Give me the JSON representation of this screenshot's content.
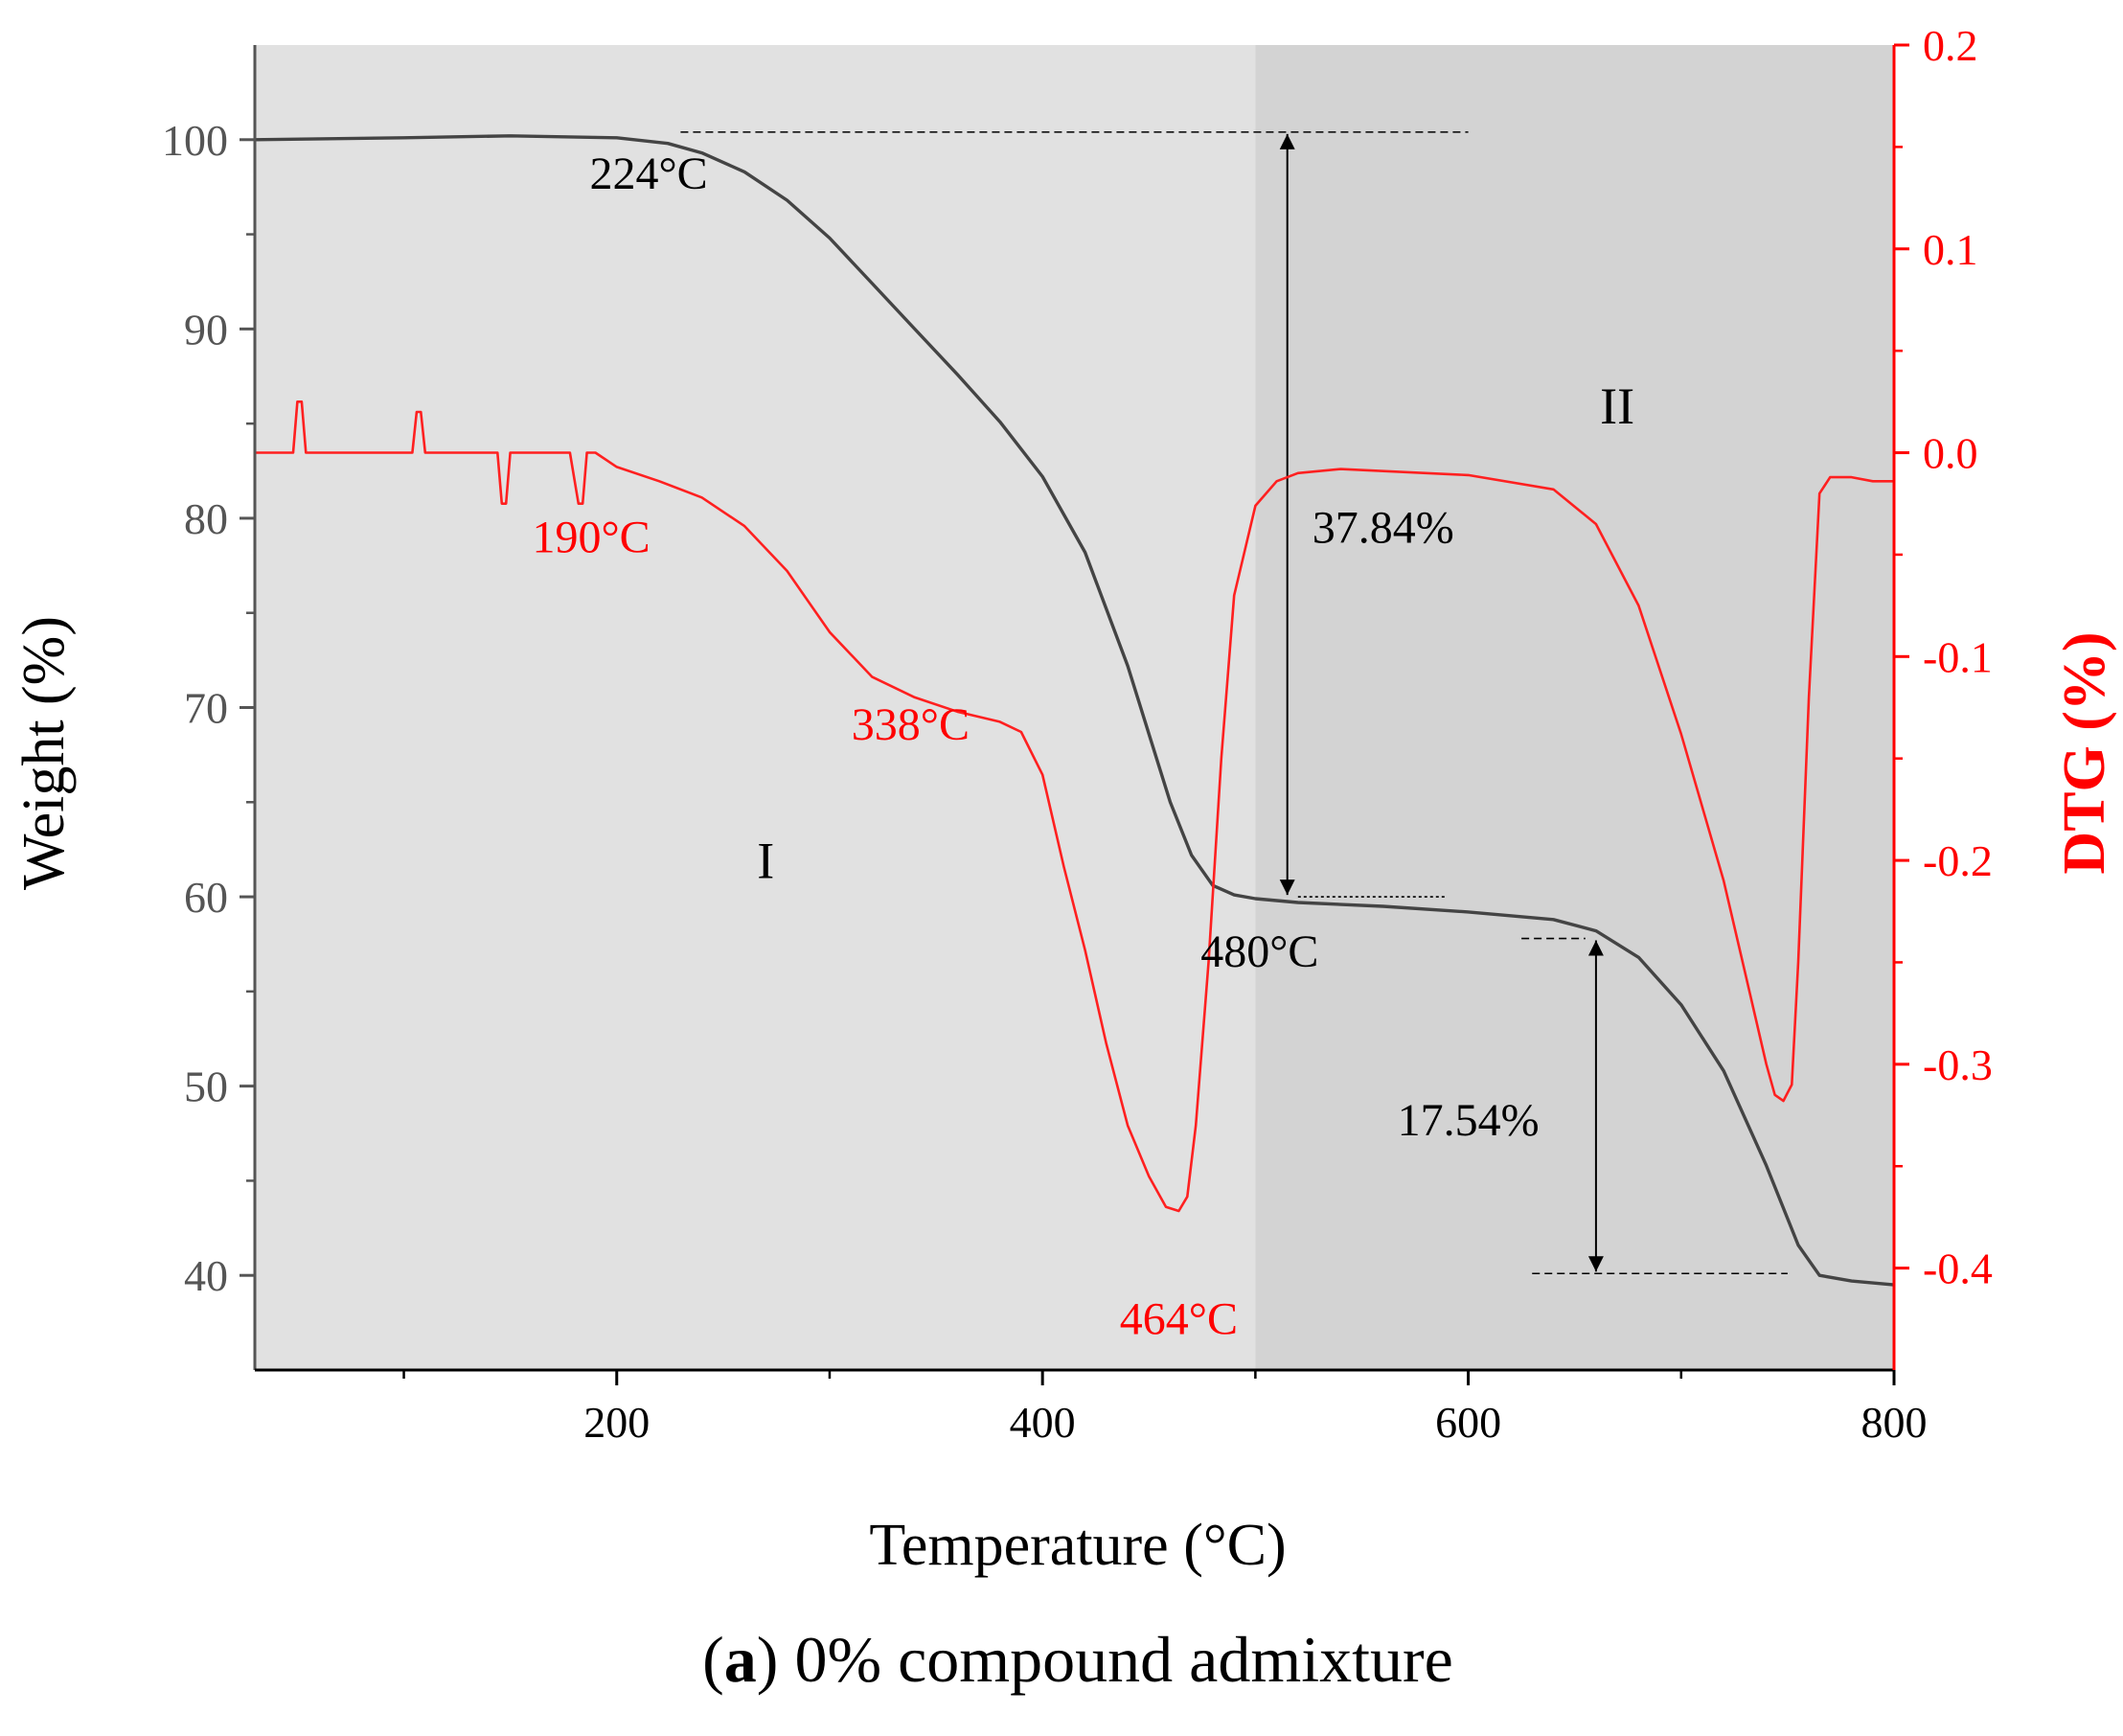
{
  "chart_data": {
    "type": "line",
    "xlabel": "Temperature (°C)",
    "ylabel_left": "Weight (%)",
    "ylabel_right": "DTG (%)",
    "caption_bold": "a",
    "caption_rest": ") 0% compound admixture",
    "caption_open": "(",
    "xlim": [
      30,
      800
    ],
    "ylim_left": [
      35,
      105
    ],
    "ylim_right": [
      -0.45,
      0.2
    ],
    "xticks": [
      200,
      400,
      600,
      800
    ],
    "xticks_minor": [
      100,
      300,
      500,
      700
    ],
    "yticks_left": [
      40,
      50,
      60,
      70,
      80,
      90,
      100
    ],
    "yticks_right": [
      0.2,
      0.1,
      0.0,
      -0.1,
      -0.2,
      -0.3,
      -0.4
    ],
    "yticks_right_labels": [
      "0.2",
      "0.1",
      "0.0",
      "-0.1",
      "-0.2",
      "-0.3",
      "-0.4"
    ],
    "regions": [
      {
        "name": "I",
        "x_range": [
          30,
          500
        ],
        "color": "#e1e1e1"
      },
      {
        "name": "II",
        "x_range": [
          500,
          800
        ],
        "color": "#d3d3d3"
      }
    ],
    "region_labels": [
      {
        "text": "I",
        "x": 270,
        "y": 61
      },
      {
        "text": "II",
        "x": 670,
        "y": 85
      }
    ],
    "series": [
      {
        "name": "Weight (TG)",
        "axis": "left",
        "color": "#444444",
        "x": [
          30,
          100,
          150,
          200,
          224,
          240,
          260,
          280,
          300,
          320,
          340,
          360,
          380,
          400,
          420,
          440,
          450,
          460,
          470,
          480,
          490,
          500,
          520,
          560,
          600,
          640,
          660,
          680,
          700,
          720,
          740,
          755,
          765,
          780,
          800
        ],
        "y": [
          100,
          100.1,
          100.2,
          100.1,
          99.8,
          99.3,
          98.3,
          96.8,
          94.8,
          92.4,
          90.0,
          87.6,
          85.1,
          82.2,
          78.2,
          72.2,
          68.6,
          65.0,
          62.2,
          60.6,
          60.1,
          59.9,
          59.7,
          59.5,
          59.2,
          58.8,
          58.2,
          56.8,
          54.3,
          50.8,
          45.8,
          41.6,
          40.0,
          39.7,
          39.5
        ]
      },
      {
        "name": "DTG",
        "axis": "right",
        "color": "#ff2020",
        "x": [
          30,
          48,
          50,
          52,
          54,
          100,
          104,
          106,
          108,
          110,
          140,
          144,
          146,
          148,
          150,
          178,
          182,
          184,
          186,
          188,
          190,
          200,
          220,
          240,
          260,
          280,
          300,
          320,
          340,
          360,
          380,
          390,
          400,
          410,
          420,
          430,
          440,
          450,
          458,
          464,
          468,
          472,
          478,
          484,
          490,
          500,
          510,
          520,
          540,
          560,
          600,
          640,
          660,
          680,
          700,
          720,
          730,
          740,
          744,
          748,
          752,
          755,
          760,
          765,
          770,
          780,
          790,
          800
        ],
        "y": [
          0.0,
          0.0,
          0.025,
          0.025,
          0.0,
          0.0,
          0.0,
          0.02,
          0.02,
          0.0,
          0.0,
          0.0,
          -0.025,
          -0.025,
          0.0,
          0.0,
          -0.025,
          -0.025,
          0.0,
          0.0,
          0.0,
          -0.007,
          -0.014,
          -0.022,
          -0.036,
          -0.058,
          -0.088,
          -0.11,
          -0.12,
          -0.127,
          -0.132,
          -0.137,
          -0.158,
          -0.203,
          -0.244,
          -0.29,
          -0.33,
          -0.355,
          -0.37,
          -0.372,
          -0.365,
          -0.33,
          -0.25,
          -0.15,
          -0.07,
          -0.026,
          -0.014,
          -0.01,
          -0.008,
          -0.009,
          -0.011,
          -0.018,
          -0.035,
          -0.075,
          -0.138,
          -0.21,
          -0.255,
          -0.3,
          -0.315,
          -0.318,
          -0.31,
          -0.25,
          -0.12,
          -0.02,
          -0.012,
          -0.012,
          -0.014,
          -0.014
        ]
      }
    ],
    "annotations": [
      {
        "text": "224°C",
        "color": "black",
        "x": 215,
        "y": 97.4
      },
      {
        "text": "190°C",
        "color": "red",
        "x": 188,
        "y": 78.2
      },
      {
        "text": "338°C",
        "color": "red",
        "x": 338,
        "y": 68.3
      },
      {
        "text": "464°C",
        "color": "red",
        "x": 464,
        "y": 36.9
      },
      {
        "text": "480°C",
        "color": "black",
        "x": 502,
        "y": 56.3
      },
      {
        "text": "37.84%",
        "color": "black",
        "x": 560,
        "y": 78.7
      },
      {
        "text": "17.54%",
        "color": "black",
        "x": 600,
        "y": 47.4
      }
    ],
    "reference_lines": [
      {
        "x_range": [
          230,
          600
        ],
        "y": 100.4
      },
      {
        "x_range": [
          520,
          590
        ],
        "y": 60.0
      },
      {
        "x_range": [
          625,
          655
        ],
        "y": 57.8
      },
      {
        "x_range": [
          630,
          750
        ],
        "y": 40.1
      }
    ],
    "arrows": [
      {
        "x": 515,
        "y_from": 100.4,
        "y_to": 60.0
      },
      {
        "x": 660,
        "y_from": 57.8,
        "y_to": 40.1
      }
    ]
  }
}
